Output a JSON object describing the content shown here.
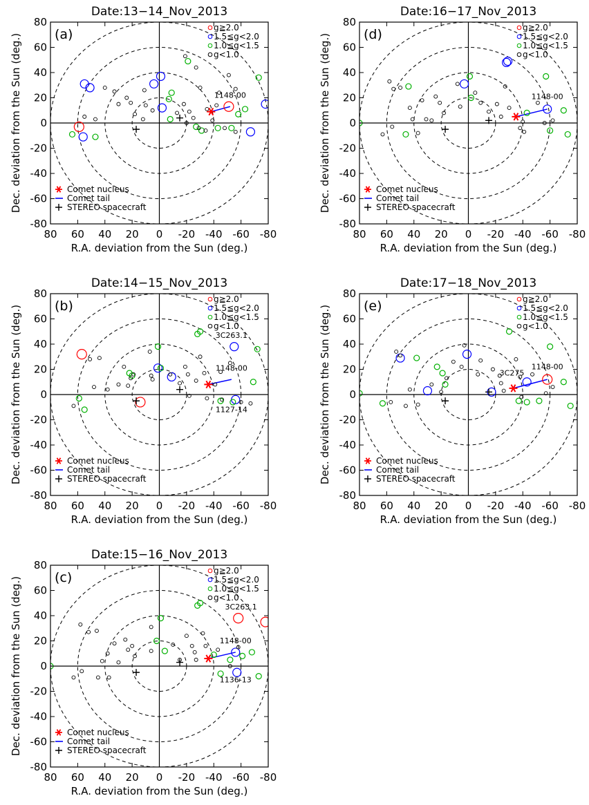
{
  "figure": {
    "xlabel": "R.A. deviation from the Sun (deg.)",
    "ylabel": "Dec. deviation from the Sun (deg.)",
    "legend_g": [
      "g≧2.0",
      "1.5≦g<2.0",
      "1.0≦g<1.5",
      "g<1.0"
    ],
    "legend_g_colors": [
      "#ff0000",
      "#0000ff",
      "#00b000",
      "#000000"
    ],
    "legend_obj": [
      "Comet nucleus",
      "Comet tail",
      "STEREO spacecraft"
    ],
    "colors": {
      "nucleus": "#ff0000",
      "tail": "#0000ff",
      "stereo": "#000000"
    }
  },
  "chart_data": [
    {
      "type": "scatter",
      "label": "(a)",
      "title": "Date:13−14_Nov_2013",
      "xlim": [
        80,
        -80
      ],
      "ylim": [
        -80,
        80
      ],
      "xticks": [
        80,
        60,
        40,
        20,
        0,
        -20,
        -40,
        -60,
        -80
      ],
      "yticks": [
        -80,
        -60,
        -40,
        -20,
        0,
        20,
        40,
        60,
        80
      ],
      "rings": [
        20,
        40,
        60,
        80
      ],
      "nucleus": [
        -38,
        9
      ],
      "tail": [
        [
          -38,
          9
        ],
        [
          -52,
          13
        ]
      ],
      "stereo": [
        [
          17,
          -5
        ],
        [
          -15,
          4
        ]
      ],
      "labels": [
        {
          "text": "1148-00",
          "x": -52,
          "y": 20
        }
      ],
      "points": {
        "g_ge_2": [
          [
            59,
            -3
          ],
          [
            -51,
            13
          ]
        ],
        "g_15_20": [
          [
            55,
            31
          ],
          [
            51,
            28
          ],
          [
            56,
            -11
          ],
          [
            4,
            31
          ],
          [
            -1,
            37
          ],
          [
            -2,
            12
          ],
          [
            -67,
            -7
          ],
          [
            -78,
            15
          ]
        ],
        "g_10_15": [
          [
            64,
            -9
          ],
          [
            47,
            -11
          ],
          [
            -9,
            24
          ],
          [
            -7,
            19
          ],
          [
            -8,
            3
          ],
          [
            -21,
            49
          ],
          [
            -27,
            -3
          ],
          [
            -31,
            -6
          ],
          [
            -43,
            -4
          ],
          [
            -53,
            -4
          ],
          [
            -58,
            7
          ],
          [
            -63,
            11
          ],
          [
            -73,
            36
          ]
        ],
        "g_lt_10": [
          [
            33,
            25
          ],
          [
            30,
            15
          ],
          [
            24,
            20
          ],
          [
            21,
            16
          ],
          [
            18,
            7
          ],
          [
            10,
            14
          ],
          [
            11,
            26
          ],
          [
            5,
            10
          ],
          [
            12,
            3
          ],
          [
            -13,
            8
          ],
          [
            -18,
            15
          ],
          [
            -22,
            9
          ],
          [
            -25,
            4
          ],
          [
            -20,
            0
          ],
          [
            -29,
            -4
          ],
          [
            -34,
            -6
          ],
          [
            -39,
            2
          ],
          [
            -35,
            11
          ],
          [
            -42,
            14
          ],
          [
            -48,
            -4
          ],
          [
            -56,
            -7
          ],
          [
            -51,
            38
          ],
          [
            -56,
            27
          ],
          [
            -44,
            24
          ],
          [
            -19,
            53
          ],
          [
            -30,
            28
          ],
          [
            -27,
            44
          ],
          [
            40,
            28
          ],
          [
            47,
            3
          ],
          [
            55,
            5
          ]
        ]
      }
    },
    {
      "type": "scatter",
      "label": "(b)",
      "title": "Date:14−15_Nov_2013",
      "xlim": [
        80,
        -80
      ],
      "ylim": [
        -80,
        80
      ],
      "xticks": [
        80,
        60,
        40,
        20,
        0,
        -20,
        -40,
        -60,
        -80
      ],
      "yticks": [
        -80,
        -60,
        -40,
        -20,
        0,
        20,
        40,
        60,
        80
      ],
      "rings": [
        20,
        40,
        60,
        80
      ],
      "nucleus": [
        -36,
        8
      ],
      "tail": [
        [
          -36,
          8
        ],
        [
          -53,
          12
        ]
      ],
      "stereo": [
        [
          17,
          -5
        ],
        [
          -15,
          4
        ]
      ],
      "labels": [
        {
          "text": "3C263.1",
          "x": -53,
          "y": 45
        },
        {
          "text": "1148-00",
          "x": -53,
          "y": 19
        },
        {
          "text": "1127-14",
          "x": -53,
          "y": -14
        }
      ],
      "points": {
        "g_ge_2": [
          [
            57,
            32
          ],
          [
            14,
            -6
          ]
        ],
        "g_15_20": [
          [
            1,
            21
          ],
          [
            -9,
            14
          ],
          [
            -55,
            38
          ],
          [
            -56,
            -4
          ]
        ],
        "g_10_15": [
          [
            59,
            -3
          ],
          [
            55,
            -12
          ],
          [
            22,
            17
          ],
          [
            20,
            15
          ],
          [
            1,
            38
          ],
          [
            -1,
            21
          ],
          [
            -28,
            48
          ],
          [
            -30,
            50
          ],
          [
            -45,
            -5
          ],
          [
            -54,
            -6
          ],
          [
            -69,
            10
          ],
          [
            -72,
            36
          ]
        ],
        "g_lt_10": [
          [
            63,
            -9
          ],
          [
            51,
            28
          ],
          [
            44,
            29
          ],
          [
            38,
            4
          ],
          [
            30,
            8
          ],
          [
            26,
            22
          ],
          [
            23,
            7
          ],
          [
            21,
            13
          ],
          [
            19,
            16
          ],
          [
            6,
            15
          ],
          [
            7,
            34
          ],
          [
            5,
            12
          ],
          [
            -8,
            16
          ],
          [
            -15,
            9
          ],
          [
            -19,
            22
          ],
          [
            -21,
            16
          ],
          [
            -27,
            11
          ],
          [
            -22,
            -1
          ],
          [
            -35,
            -3
          ],
          [
            -33,
            17
          ],
          [
            -45,
            18
          ],
          [
            -52,
            25
          ],
          [
            -46,
            -4
          ],
          [
            -60,
            -6
          ],
          [
            -67,
            -7
          ],
          [
            -30,
            30
          ],
          [
            -41,
            8
          ],
          [
            48,
            6
          ]
        ]
      }
    },
    {
      "type": "scatter",
      "label": "(c)",
      "title": "Date:15−16_Nov_2013",
      "xlim": [
        80,
        -80
      ],
      "ylim": [
        -80,
        80
      ],
      "xticks": [
        80,
        60,
        40,
        20,
        0,
        -20,
        -40,
        -60,
        -80
      ],
      "yticks": [
        -80,
        -60,
        -40,
        -20,
        0,
        20,
        40,
        60,
        80
      ],
      "rings": [
        20,
        40,
        60,
        80
      ],
      "nucleus": [
        -36,
        6
      ],
      "tail": [
        [
          -36,
          6
        ],
        [
          -56,
          11
        ]
      ],
      "stereo": [
        [
          17,
          -5
        ],
        [
          -15,
          3
        ]
      ],
      "labels": [
        {
          "text": "3C263.1",
          "x": -60,
          "y": 45
        },
        {
          "text": "1148-00",
          "x": -56,
          "y": 18
        },
        {
          "text": "1136-13",
          "x": -56,
          "y": -13
        }
      ],
      "points": {
        "g_ge_2": [
          [
            -58,
            38
          ],
          [
            -78,
            35
          ]
        ],
        "g_15_20": [
          [
            -56,
            11
          ],
          [
            -57,
            -5
          ]
        ],
        "g_10_15": [
          [
            80,
            0
          ],
          [
            -1,
            38
          ],
          [
            2,
            20
          ],
          [
            -4,
            12
          ],
          [
            -28,
            48
          ],
          [
            -30,
            50
          ],
          [
            -40,
            9
          ],
          [
            -45,
            -6
          ],
          [
            -52,
            5
          ],
          [
            -61,
            8
          ],
          [
            -68,
            11
          ],
          [
            -73,
            -8
          ]
        ],
        "g_lt_10": [
          [
            63,
            -9
          ],
          [
            58,
            33
          ],
          [
            52,
            27
          ],
          [
            46,
            28
          ],
          [
            42,
            4
          ],
          [
            37,
            -9
          ],
          [
            30,
            3
          ],
          [
            25,
            21
          ],
          [
            23,
            13
          ],
          [
            20,
            16
          ],
          [
            18,
            8
          ],
          [
            6,
            31
          ],
          [
            6,
            12
          ],
          [
            -10,
            17
          ],
          [
            -15,
            5
          ],
          [
            -20,
            24
          ],
          [
            -24,
            16
          ],
          [
            -26,
            11
          ],
          [
            -27,
            5
          ],
          [
            -32,
            26
          ],
          [
            -34,
            16
          ],
          [
            -43,
            13
          ],
          [
            -52,
            0
          ],
          [
            -58,
            15
          ],
          [
            57,
            -4
          ],
          [
            45,
            -9
          ],
          [
            38,
            10
          ],
          [
            33,
            18
          ]
        ]
      }
    },
    {
      "type": "scatter",
      "label": "(d)",
      "title": "Date:16−17_Nov_2013",
      "xlim": [
        80,
        -80
      ],
      "ylim": [
        -80,
        80
      ],
      "xticks": [
        80,
        60,
        40,
        20,
        0,
        -20,
        -40,
        -60,
        -80
      ],
      "yticks": [
        -80,
        -60,
        -40,
        -20,
        0,
        20,
        40,
        60,
        80
      ],
      "rings": [
        20,
        40,
        60,
        80
      ],
      "nucleus": [
        -35,
        5
      ],
      "tail": [
        [
          -35,
          5
        ],
        [
          -58,
          11
        ]
      ],
      "stereo": [
        [
          17,
          -5
        ],
        [
          -15,
          2
        ]
      ],
      "labels": [
        {
          "text": "1148-00",
          "x": -58,
          "y": 19
        }
      ],
      "points": {
        "g_ge_2": [],
        "g_15_20": [
          [
            3,
            31
          ],
          [
            -28,
            48
          ],
          [
            -29,
            49
          ],
          [
            -58,
            11
          ]
        ],
        "g_10_15": [
          [
            80,
            0
          ],
          [
            46,
            -9
          ],
          [
            44,
            29
          ],
          [
            -1,
            37
          ],
          [
            -2,
            20
          ],
          [
            -43,
            8
          ],
          [
            -57,
            37
          ],
          [
            -60,
            -6
          ],
          [
            -70,
            10
          ],
          [
            -73,
            -9
          ]
        ],
        "g_lt_10": [
          [
            63,
            -9
          ],
          [
            58,
            33
          ],
          [
            55,
            27
          ],
          [
            50,
            28
          ],
          [
            41,
            3
          ],
          [
            37,
            -8
          ],
          [
            31,
            3
          ],
          [
            24,
            21
          ],
          [
            21,
            16
          ],
          [
            18,
            8
          ],
          [
            8,
            31
          ],
          [
            6,
            13
          ],
          [
            -5,
            24
          ],
          [
            -9,
            16
          ],
          [
            -15,
            9
          ],
          [
            -21,
            15
          ],
          [
            -24,
            5
          ],
          [
            -27,
            29
          ],
          [
            -30,
            12
          ],
          [
            -38,
            -4
          ],
          [
            -41,
            -7
          ],
          [
            -40,
            1
          ],
          [
            -51,
            16
          ],
          [
            -56,
            0
          ],
          [
            -62,
            2
          ],
          [
            56,
            -3
          ],
          [
            43,
            12
          ],
          [
            34,
            18
          ],
          [
            27,
            2
          ]
        ]
      }
    },
    {
      "type": "scatter",
      "label": "(e)",
      "title": "Date:17−18_Nov_2013",
      "xlim": [
        80,
        -80
      ],
      "ylim": [
        -80,
        80
      ],
      "xticks": [
        80,
        60,
        40,
        20,
        0,
        -20,
        -40,
        -60,
        -80
      ],
      "yticks": [
        -80,
        -60,
        -40,
        -20,
        0,
        20,
        40,
        60,
        80
      ],
      "rings": [
        20,
        40,
        60,
        80
      ],
      "nucleus": [
        -33,
        5
      ],
      "tail": [
        [
          -33,
          5
        ],
        [
          -58,
          12
        ]
      ],
      "stereo": [
        [
          17,
          -5
        ],
        [
          -15,
          2
        ]
      ],
      "labels": [
        {
          "text": "3C275",
          "x": -32,
          "y": 15
        },
        {
          "text": "1148-00",
          "x": -58,
          "y": 20
        }
      ],
      "points": {
        "g_ge_2": [
          [
            -58,
            12
          ]
        ],
        "g_15_20": [
          [
            50,
            29
          ],
          [
            30,
            3
          ],
          [
            1,
            32
          ],
          [
            -43,
            10
          ],
          [
            -17,
            2
          ]
        ],
        "g_10_15": [
          [
            80,
            1
          ],
          [
            38,
            29
          ],
          [
            23,
            22
          ],
          [
            19,
            17
          ],
          [
            17,
            8
          ],
          [
            -37,
            -5
          ],
          [
            -43,
            -6
          ],
          [
            -52,
            -5
          ],
          [
            -60,
            38
          ],
          [
            -70,
            10
          ],
          [
            -75,
            -9
          ],
          [
            -30,
            50
          ],
          [
            63,
            -7
          ]
        ],
        "g_lt_10": [
          [
            57,
            -6
          ],
          [
            53,
            34
          ],
          [
            50,
            31
          ],
          [
            46,
            -9
          ],
          [
            43,
            4
          ],
          [
            37,
            -8
          ],
          [
            27,
            8
          ],
          [
            16,
            13
          ],
          [
            5,
            22
          ],
          [
            3,
            39
          ],
          [
            -7,
            16
          ],
          [
            -9,
            27
          ],
          [
            -18,
            20
          ],
          [
            -23,
            15
          ],
          [
            -24,
            9
          ],
          [
            -26,
            3
          ],
          [
            -35,
            28
          ],
          [
            -38,
            14
          ],
          [
            -47,
            16
          ],
          [
            -57,
            1
          ],
          [
            -62,
            6
          ],
          [
            -39,
            -2
          ],
          [
            20,
            2
          ],
          [
            11,
            26
          ]
        ]
      }
    }
  ]
}
